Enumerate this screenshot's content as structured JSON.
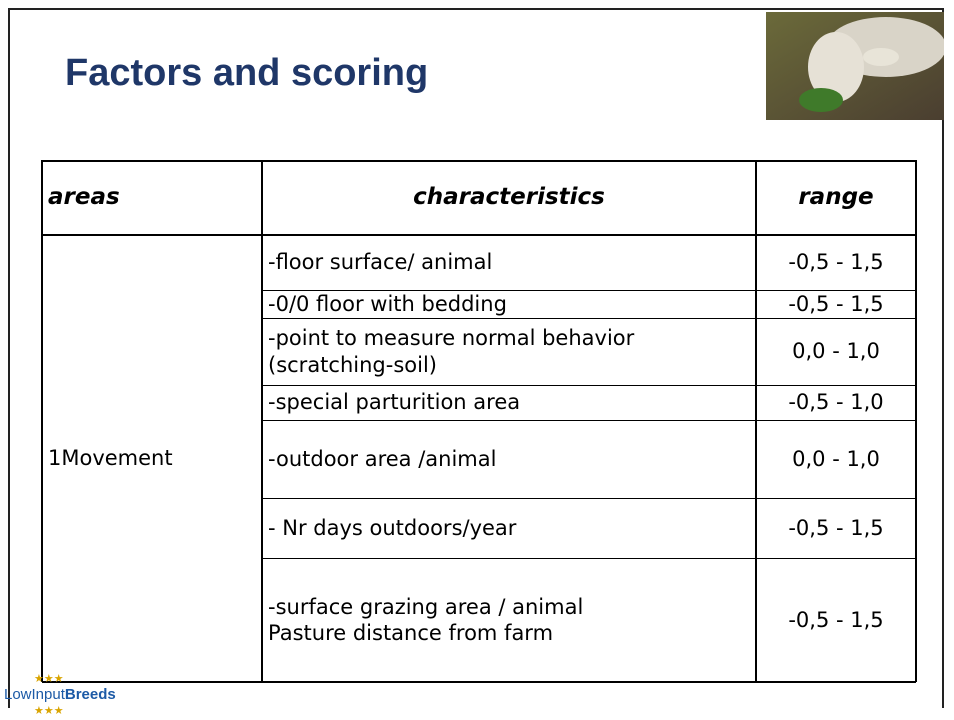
{
  "header": {
    "title": "Factors and scoring"
  },
  "table": {
    "columns": [
      "areas",
      "characteristics",
      "range"
    ],
    "area": "1Movement",
    "rows": [
      {
        "characteristics": [
          "-floor surface/ animal"
        ],
        "range": "-0,5 - 1,5"
      },
      {
        "characteristics": [
          "-0/0 floor with bedding"
        ],
        "range": "-0,5 - 1,5"
      },
      {
        "characteristics": [
          "-point to measure normal behavior (scratching-soil)"
        ],
        "range": "0,0 - 1,0"
      },
      {
        "characteristics": [
          "-special parturition area"
        ],
        "range": "-0,5 - 1,0"
      },
      {
        "characteristics": [
          "-outdoor area /animal"
        ],
        "range": "0,0 - 1,0"
      },
      {
        "characteristics": [
          "- Nr days outdoors/year"
        ],
        "range": "-0,5 - 1,5"
      },
      {
        "characteristics": [
          "-surface grazing area / animal",
          "Pasture distance from farm"
        ],
        "range": "-0,5 - 1,5"
      }
    ]
  },
  "footer": {
    "logo_light": "LowInput",
    "logo_bold": "Breeds"
  }
}
